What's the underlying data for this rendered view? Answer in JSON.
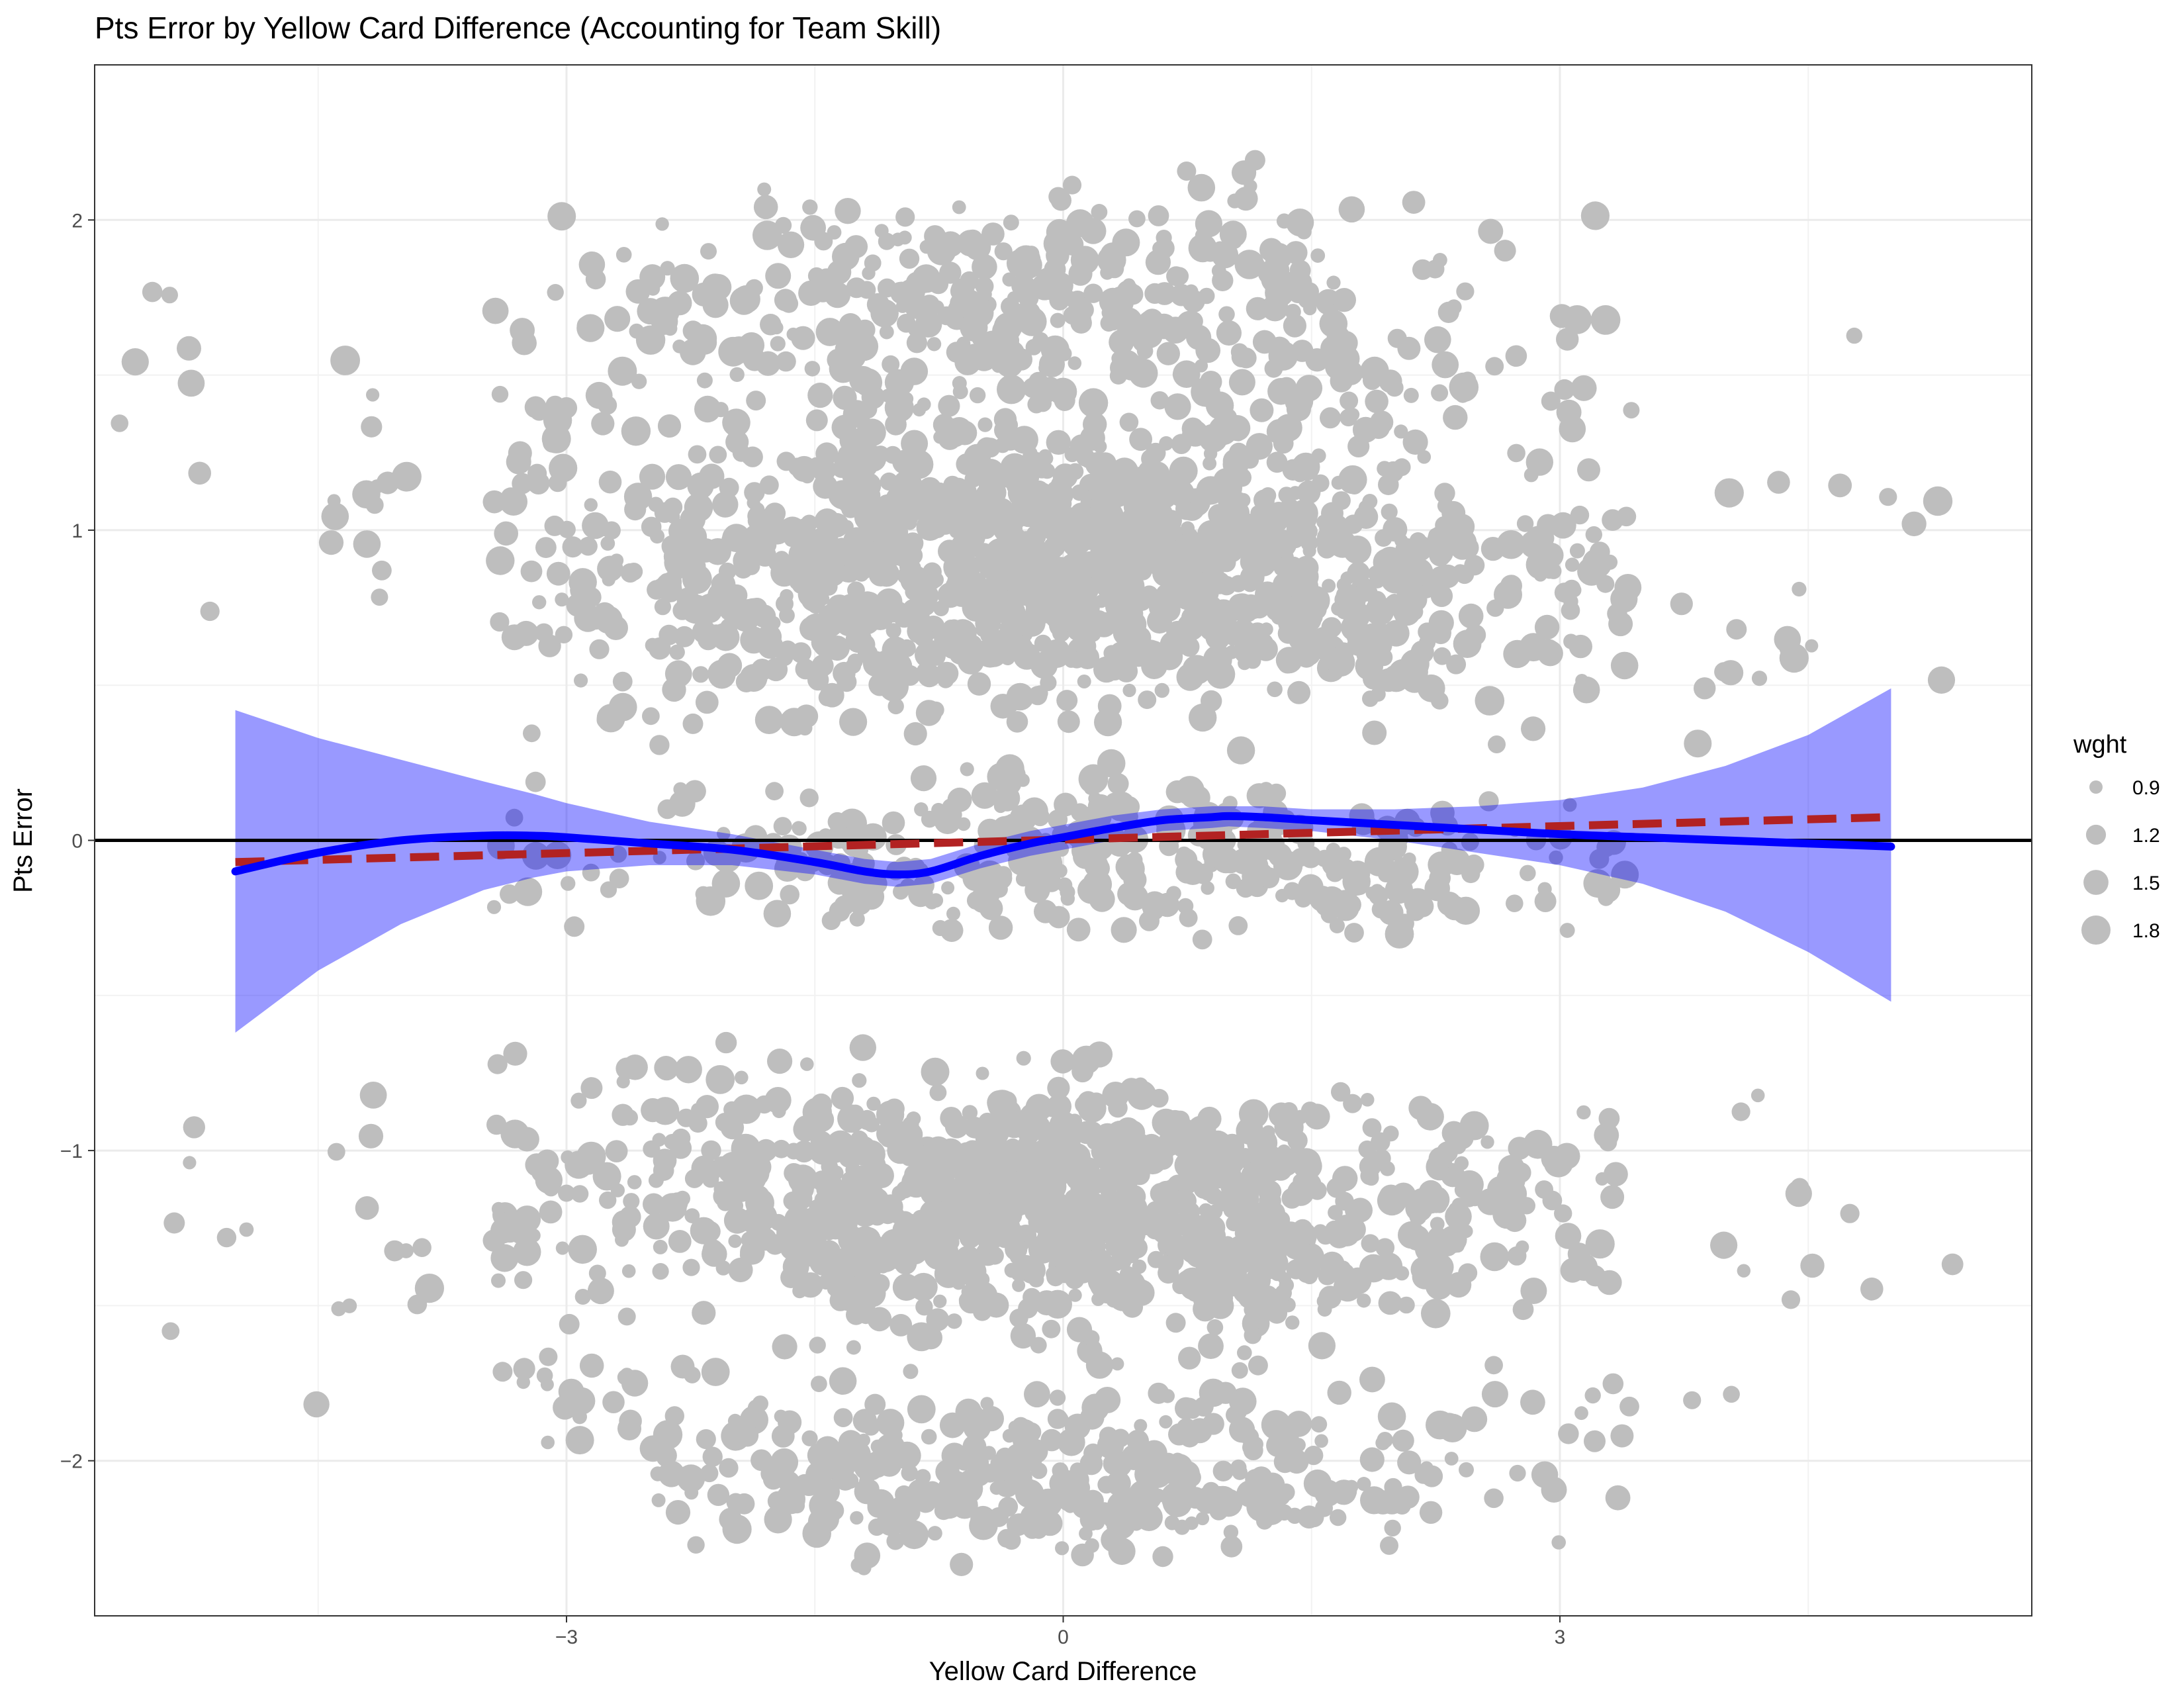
{
  "chart_data": {
    "type": "scatter",
    "title": "Pts Error by Yellow Card Difference (Accounting for Team Skill)",
    "xlabel": "Yellow Card Difference",
    "ylabel": "Pts Error",
    "xlim": [
      -5.85,
      5.85
    ],
    "ylim": [
      -2.5,
      2.5
    ],
    "x_ticks": [
      -3,
      0,
      3
    ],
    "x_tick_labels": [
      "−3",
      "0",
      "3"
    ],
    "y_ticks": [
      -2,
      -1,
      0,
      1,
      2
    ],
    "y_tick_labels": [
      "−2",
      "−1",
      "0",
      "1",
      "2"
    ],
    "grid": true,
    "legend": {
      "title": "wght",
      "position": "right",
      "entries": [
        {
          "label": "0.9",
          "value": 0.9
        },
        {
          "label": "1.2",
          "value": 1.2
        },
        {
          "label": "1.5",
          "value": 1.5
        },
        {
          "label": "1.8",
          "value": 1.8
        }
      ]
    },
    "points_color": "#bebebe",
    "point_clusters": [
      {
        "x_center": -5.4,
        "x_spread": 0.35,
        "y_center": 1.3,
        "y_spread": 0.6,
        "count": 8
      },
      {
        "x_center": -5.2,
        "x_spread": 0.35,
        "y_center": -1.2,
        "y_spread": 0.5,
        "count": 6
      },
      {
        "x_center": -4.2,
        "x_spread": 0.35,
        "y_center": 1.0,
        "y_spread": 0.6,
        "count": 14
      },
      {
        "x_center": -4.2,
        "x_spread": 0.35,
        "y_center": -1.2,
        "y_spread": 0.5,
        "count": 12
      },
      {
        "x_center": -3.0,
        "x_spread": 0.4,
        "y_center": 0.9,
        "y_spread": 0.45,
        "count": 70
      },
      {
        "x_center": -3.0,
        "x_spread": 0.4,
        "y_center": 1.6,
        "y_spread": 0.4,
        "count": 22
      },
      {
        "x_center": -3.0,
        "x_spread": 0.4,
        "y_center": -1.1,
        "y_spread": 0.35,
        "count": 55
      },
      {
        "x_center": -3.0,
        "x_spread": 0.4,
        "y_center": -1.8,
        "y_spread": 0.3,
        "count": 20
      },
      {
        "x_center": -3.0,
        "x_spread": 0.4,
        "y_center": -0.1,
        "y_spread": 0.2,
        "count": 14
      },
      {
        "x_center": -2.0,
        "x_spread": 0.45,
        "y_center": 0.85,
        "y_spread": 0.4,
        "count": 150
      },
      {
        "x_center": -2.0,
        "x_spread": 0.45,
        "y_center": 1.7,
        "y_spread": 0.35,
        "count": 55
      },
      {
        "x_center": -2.0,
        "x_spread": 0.45,
        "y_center": -1.15,
        "y_spread": 0.35,
        "count": 120
      },
      {
        "x_center": -2.0,
        "x_spread": 0.45,
        "y_center": -2.0,
        "y_spread": 0.25,
        "count": 45
      },
      {
        "x_center": -2.0,
        "x_spread": 0.45,
        "y_center": 0.0,
        "y_spread": 0.2,
        "count": 30
      },
      {
        "x_center": -1.0,
        "x_spread": 0.45,
        "y_center": 0.9,
        "y_spread": 0.4,
        "count": 260
      },
      {
        "x_center": -1.0,
        "x_spread": 0.45,
        "y_center": 1.7,
        "y_spread": 0.35,
        "count": 100
      },
      {
        "x_center": -1.0,
        "x_spread": 0.45,
        "y_center": -1.2,
        "y_spread": 0.35,
        "count": 240
      },
      {
        "x_center": -1.0,
        "x_spread": 0.45,
        "y_center": -2.05,
        "y_spread": 0.25,
        "count": 90
      },
      {
        "x_center": -1.0,
        "x_spread": 0.45,
        "y_center": -0.05,
        "y_spread": 0.2,
        "count": 60
      },
      {
        "x_center": 0.0,
        "x_spread": 0.45,
        "y_center": 0.9,
        "y_spread": 0.4,
        "count": 340
      },
      {
        "x_center": 0.0,
        "x_spread": 0.45,
        "y_center": 1.7,
        "y_spread": 0.35,
        "count": 110
      },
      {
        "x_center": 0.0,
        "x_spread": 0.45,
        "y_center": -1.15,
        "y_spread": 0.35,
        "count": 320
      },
      {
        "x_center": 0.0,
        "x_spread": 0.45,
        "y_center": -2.05,
        "y_spread": 0.25,
        "count": 100
      },
      {
        "x_center": 0.0,
        "x_spread": 0.45,
        "y_center": 0.0,
        "y_spread": 0.25,
        "count": 110
      },
      {
        "x_center": 1.0,
        "x_spread": 0.45,
        "y_center": 0.9,
        "y_spread": 0.4,
        "count": 270
      },
      {
        "x_center": 1.0,
        "x_spread": 0.45,
        "y_center": 1.75,
        "y_spread": 0.35,
        "count": 100
      },
      {
        "x_center": 1.0,
        "x_spread": 0.45,
        "y_center": -1.2,
        "y_spread": 0.35,
        "count": 230
      },
      {
        "x_center": 1.0,
        "x_spread": 0.45,
        "y_center": -2.05,
        "y_spread": 0.25,
        "count": 90
      },
      {
        "x_center": 1.0,
        "x_spread": 0.45,
        "y_center": -0.05,
        "y_spread": 0.2,
        "count": 80
      },
      {
        "x_center": 2.0,
        "x_spread": 0.45,
        "y_center": 0.85,
        "y_spread": 0.4,
        "count": 150
      },
      {
        "x_center": 2.0,
        "x_spread": 0.45,
        "y_center": 1.6,
        "y_spread": 0.35,
        "count": 45
      },
      {
        "x_center": 2.0,
        "x_spread": 0.45,
        "y_center": -1.2,
        "y_spread": 0.3,
        "count": 100
      },
      {
        "x_center": 2.0,
        "x_spread": 0.45,
        "y_center": -2.0,
        "y_spread": 0.25,
        "count": 40
      },
      {
        "x_center": 2.0,
        "x_spread": 0.45,
        "y_center": -0.1,
        "y_spread": 0.2,
        "count": 60
      },
      {
        "x_center": 3.0,
        "x_spread": 0.4,
        "y_center": 0.85,
        "y_spread": 0.4,
        "count": 60
      },
      {
        "x_center": 3.0,
        "x_spread": 0.4,
        "y_center": 1.5,
        "y_spread": 0.35,
        "count": 16
      },
      {
        "x_center": 3.0,
        "x_spread": 0.4,
        "y_center": -1.2,
        "y_spread": 0.35,
        "count": 40
      },
      {
        "x_center": 3.0,
        "x_spread": 0.4,
        "y_center": -2.0,
        "y_spread": 0.25,
        "count": 16
      },
      {
        "x_center": 3.0,
        "x_spread": 0.4,
        "y_center": -0.05,
        "y_spread": 0.2,
        "count": 20
      },
      {
        "x_center": 4.1,
        "x_spread": 0.4,
        "y_center": 0.7,
        "y_spread": 0.5,
        "count": 14
      },
      {
        "x_center": 4.1,
        "x_spread": 0.4,
        "y_center": -1.3,
        "y_spread": 0.5,
        "count": 10
      },
      {
        "x_center": 5.0,
        "x_spread": 0.35,
        "y_center": 1.0,
        "y_spread": 0.5,
        "count": 6
      },
      {
        "x_center": 5.0,
        "x_spread": 0.35,
        "y_center": -1.5,
        "y_spread": 0.4,
        "count": 4
      }
    ],
    "zero_line": {
      "y": 0,
      "color": "#000000"
    },
    "series": [
      {
        "type": "smooth",
        "color": "#0000ff",
        "ribbon_color": "#0000ff",
        "x": [
          -5.0,
          -4.5,
          -4.0,
          -3.5,
          -3.2,
          -3.0,
          -2.5,
          -2.0,
          -1.5,
          -1.2,
          -1.0,
          -0.8,
          -0.5,
          -0.2,
          0.0,
          0.3,
          0.6,
          0.9,
          1.0,
          1.2,
          1.5,
          2.0,
          2.5,
          3.0,
          3.5,
          4.0,
          4.5,
          5.0
        ],
        "y": [
          -0.1,
          -0.04,
          0.0,
          0.015,
          0.015,
          0.01,
          -0.01,
          -0.03,
          -0.07,
          -0.1,
          -0.11,
          -0.1,
          -0.05,
          -0.01,
          0.01,
          0.04,
          0.065,
          0.075,
          0.078,
          0.075,
          0.065,
          0.05,
          0.035,
          0.02,
          0.01,
          0.0,
          -0.01,
          -0.02
        ],
        "y_lower": [
          -0.62,
          -0.42,
          -0.27,
          -0.16,
          -0.12,
          -0.1,
          -0.08,
          -0.08,
          -0.11,
          -0.14,
          -0.15,
          -0.14,
          -0.09,
          -0.05,
          -0.03,
          0.0,
          0.03,
          0.04,
          0.045,
          0.04,
          0.03,
          0.0,
          -0.04,
          -0.08,
          -0.14,
          -0.23,
          -0.36,
          -0.52
        ],
        "y_upper": [
          0.42,
          0.33,
          0.26,
          0.19,
          0.15,
          0.12,
          0.06,
          0.02,
          -0.03,
          -0.06,
          -0.07,
          -0.06,
          -0.01,
          0.03,
          0.05,
          0.08,
          0.1,
          0.11,
          0.11,
          0.11,
          0.1,
          0.1,
          0.11,
          0.13,
          0.17,
          0.24,
          0.34,
          0.49
        ]
      },
      {
        "type": "linear",
        "color": "#b22222",
        "dashed": true,
        "x": [
          -5.0,
          5.0
        ],
        "y": [
          -0.07,
          0.075
        ]
      }
    ]
  }
}
